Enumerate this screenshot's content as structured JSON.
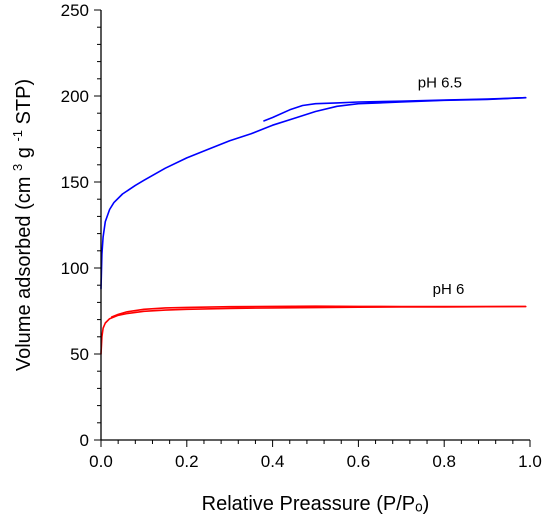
{
  "chart_data": {
    "type": "line",
    "title": "",
    "xlabel": "Relative Preassure (P/Pₒ)",
    "ylabel_parts": {
      "before_sup1": "Volume adsorbed  (cm",
      "sup1": "3",
      "middle": "g",
      "sup2": "-1",
      "after_sup2": "STP)"
    },
    "xlim": [
      0.0,
      1.0
    ],
    "ylim": [
      0,
      250
    ],
    "x_ticks": [
      "0.0",
      "0.2",
      "0.4",
      "0.6",
      "0.8",
      "1.0"
    ],
    "y_ticks": [
      "0",
      "50",
      "100",
      "150",
      "200",
      "250"
    ],
    "grid": false,
    "series": [
      {
        "name": "pH 6.5",
        "color": "#0000ff",
        "adsorption": {
          "x": [
            0.0,
            0.002,
            0.005,
            0.01,
            0.02,
            0.03,
            0.05,
            0.08,
            0.1,
            0.15,
            0.2,
            0.25,
            0.3,
            0.35,
            0.4,
            0.45,
            0.5,
            0.55,
            0.6,
            0.7,
            0.8,
            0.9,
            0.99
          ],
          "y": [
            88,
            108,
            118,
            127,
            134,
            138,
            143,
            148,
            151,
            158,
            164,
            169,
            174,
            178,
            183,
            187,
            191,
            194,
            195.5,
            196.5,
            197.5,
            198,
            199
          ]
        },
        "desorption": {
          "x": [
            0.99,
            0.9,
            0.8,
            0.7,
            0.6,
            0.55,
            0.5,
            0.47,
            0.44,
            0.4,
            0.38
          ],
          "y": [
            199,
            198.2,
            197.6,
            197,
            196.5,
            196,
            195.5,
            194.5,
            192,
            187.5,
            185.5
          ]
        }
      },
      {
        "name": "pH 6",
        "color": "#ff0000",
        "adsorption": {
          "x": [
            0.0,
            0.002,
            0.005,
            0.01,
            0.02,
            0.04,
            0.06,
            0.1,
            0.15,
            0.2,
            0.3,
            0.4,
            0.5,
            0.6,
            0.7,
            0.8,
            0.9,
            0.99
          ],
          "y": [
            50,
            60,
            65,
            68,
            70.5,
            72.5,
            73.5,
            74.8,
            75.5,
            76,
            76.5,
            76.8,
            77,
            77.2,
            77.3,
            77.4,
            77.5,
            77.6
          ]
        },
        "desorption": {
          "x": [
            0.99,
            0.9,
            0.8,
            0.7,
            0.6,
            0.5,
            0.4,
            0.3,
            0.2,
            0.15,
            0.1,
            0.06,
            0.04,
            0.025
          ],
          "y": [
            77.6,
            77.6,
            77.6,
            77.6,
            77.7,
            77.8,
            77.7,
            77.5,
            77.1,
            76.8,
            76,
            74.5,
            73,
            71.5
          ]
        }
      }
    ]
  }
}
